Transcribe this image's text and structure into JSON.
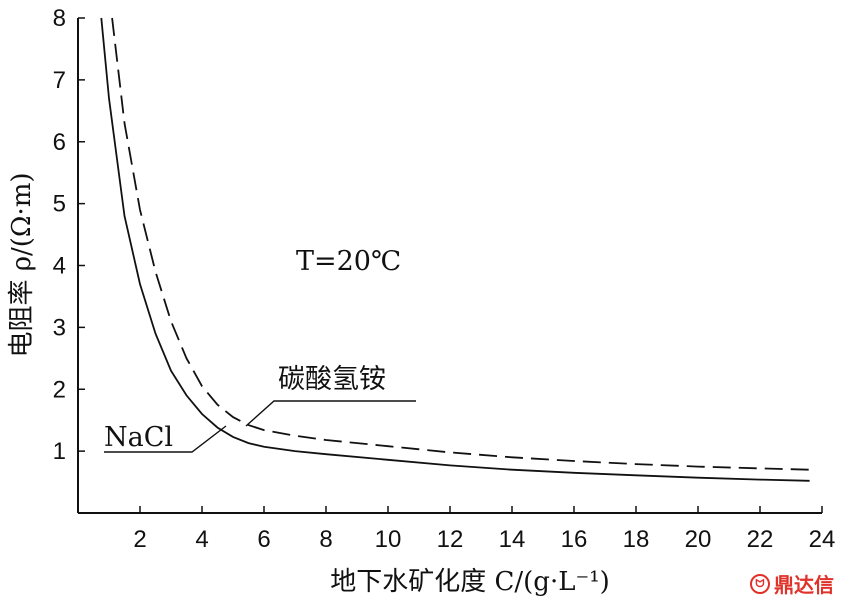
{
  "chart_data": {
    "type": "line",
    "xlabel": "地下水矿化度 C/(g·L⁻¹)",
    "ylabel": "电阻率 ρ/(Ω·m)",
    "xlim": [
      0,
      24
    ],
    "ylim": [
      0,
      8
    ],
    "xticks": [
      2,
      4,
      6,
      8,
      10,
      12,
      14,
      16,
      18,
      20,
      22,
      24
    ],
    "yticks": [
      1,
      2,
      3,
      4,
      5,
      6,
      7,
      8
    ],
    "grid": false,
    "legend": "none",
    "annotation": "T=20℃",
    "series": [
      {
        "name": "NaCl",
        "style": "solid",
        "x": [
          0.75,
          1.0,
          1.5,
          2.0,
          2.5,
          3.0,
          3.5,
          4.0,
          4.5,
          5.0,
          5.5,
          6.0,
          7.0,
          8.0,
          10.0,
          12.0,
          14.0,
          16.0,
          18.0,
          20.0,
          22.0,
          23.6
        ],
        "y": [
          8.0,
          6.7,
          4.8,
          3.7,
          2.9,
          2.3,
          1.9,
          1.6,
          1.38,
          1.23,
          1.13,
          1.07,
          1.0,
          0.95,
          0.86,
          0.77,
          0.7,
          0.65,
          0.61,
          0.57,
          0.54,
          0.52
        ]
      },
      {
        "name": "碳酸氢铵",
        "style": "dashed",
        "x": [
          1.1,
          1.5,
          2.0,
          2.5,
          3.0,
          3.5,
          4.0,
          4.5,
          5.0,
          5.5,
          6.0,
          7.0,
          8.0,
          10.0,
          12.0,
          14.0,
          16.0,
          18.0,
          20.0,
          22.0,
          23.6
        ],
        "y": [
          8.0,
          6.3,
          4.9,
          3.9,
          3.1,
          2.5,
          2.05,
          1.75,
          1.55,
          1.42,
          1.34,
          1.25,
          1.18,
          1.08,
          0.98,
          0.9,
          0.84,
          0.79,
          0.75,
          0.72,
          0.7
        ]
      }
    ]
  },
  "watermark": {
    "text": "鼎达信",
    "logo_glyph": "ᗢ",
    "color": "#e0322a"
  }
}
